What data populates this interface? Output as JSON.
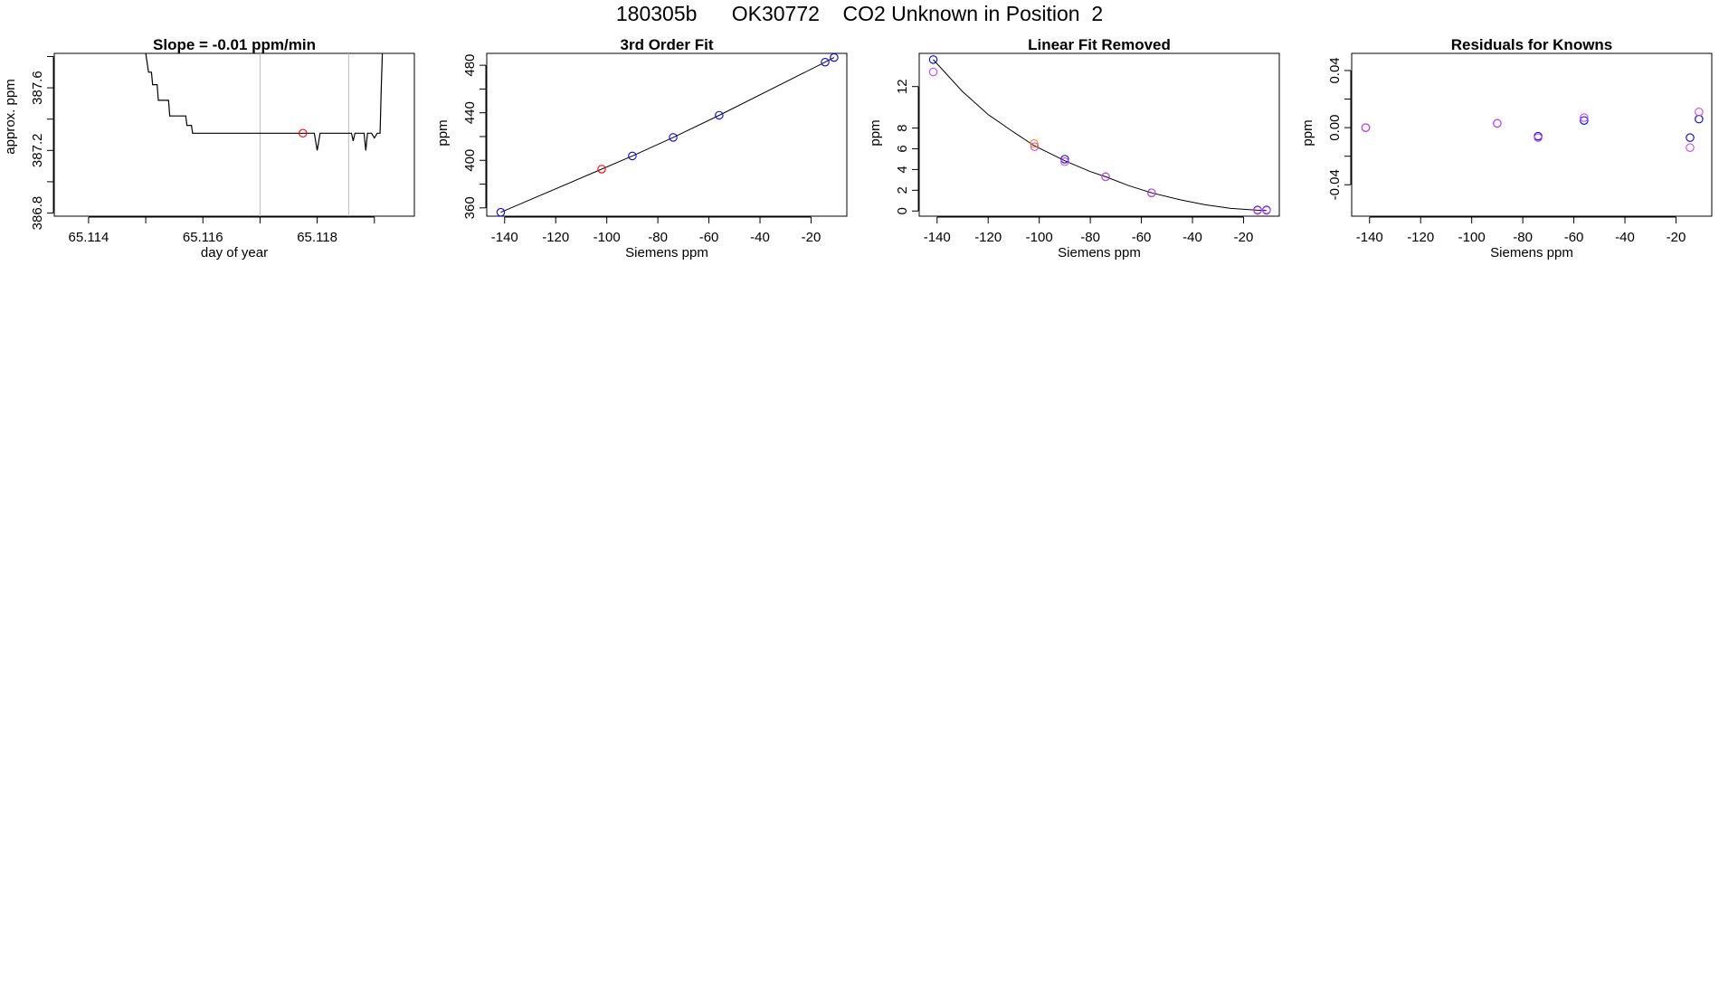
{
  "figure": {
    "title": "180305b      OK30772    CO2 Unknown in Position  2"
  },
  "chart_data": [
    {
      "type": "line",
      "title": "Slope =  -0.01  ppm/min",
      "xlabel": "day of year",
      "ylabel": "approx. ppm",
      "xlim": [
        65.1134,
        65.1197
      ],
      "ylim": [
        386.78,
        387.82
      ],
      "xticks": [
        65.114,
        65.115,
        65.116,
        65.117,
        65.118,
        65.119
      ],
      "xtick_labels": [
        "65.114",
        "",
        "65.116",
        "",
        "65.118",
        ""
      ],
      "yticks": [
        386.8,
        387.0,
        387.2,
        387.4,
        387.6,
        387.8
      ],
      "ytick_labels": [
        "386.8",
        "",
        "387.2",
        "",
        "387.6",
        ""
      ],
      "vlines": [
        65.117,
        65.11855
      ],
      "series": [
        {
          "style": "line",
          "color": "#000000",
          "x": [
            65.115,
            65.11505,
            65.1151,
            65.11512,
            65.1152,
            65.11522,
            65.1154,
            65.11542,
            65.1157,
            65.11572,
            65.1158,
            65.11582,
            65.11795,
            65.118,
            65.11805,
            65.1181,
            65.11815,
            65.1186,
            65.11863,
            65.11866,
            65.1187,
            65.11882,
            65.11885,
            65.11888,
            65.11895,
            65.119,
            65.11905,
            65.1191,
            65.11912,
            65.11914
          ],
          "y": [
            387.82,
            387.7,
            387.7,
            387.62,
            387.62,
            387.52,
            387.52,
            387.42,
            387.42,
            387.36,
            387.36,
            387.31,
            387.31,
            387.2,
            387.31,
            387.31,
            387.31,
            387.31,
            387.26,
            387.31,
            387.31,
            387.31,
            387.2,
            387.31,
            387.31,
            387.28,
            387.31,
            387.31,
            387.6,
            387.82
          ]
        },
        {
          "style": "points",
          "color": "#ff0000",
          "x": [
            65.11775
          ],
          "y": [
            387.31
          ]
        }
      ]
    },
    {
      "type": "scatter",
      "title": "3rd Order Fit",
      "xlabel": "Siemens ppm",
      "ylabel": "ppm",
      "xlim": [
        -147,
        -6
      ],
      "ylim": [
        353,
        490
      ],
      "xticks": [
        -140,
        -120,
        -100,
        -80,
        -60,
        -40,
        -20
      ],
      "xtick_labels": [
        "-140",
        "-120",
        "-100",
        "-80",
        "-60",
        "-40",
        "-20"
      ],
      "yticks": [
        360,
        380,
        400,
        420,
        440,
        460,
        480
      ],
      "ytick_labels": [
        "360",
        "",
        "400",
        "",
        "440",
        "",
        "480"
      ],
      "curve": {
        "x": [
          -141.5,
          -102.0,
          -90.0,
          -74.0,
          -56.0,
          -14.5,
          -11.0
        ],
        "y": [
          356.3,
          392.6,
          403.7,
          419.3,
          437.9,
          482.6,
          486.5
        ]
      },
      "series": [
        {
          "color": "#0000ff",
          "x": [
            -141.5,
            -90.0,
            -74.0,
            -56.0,
            -14.5,
            -11.0
          ],
          "y": [
            356.3,
            403.7,
            419.3,
            437.9,
            482.6,
            486.5
          ]
        },
        {
          "color": "#ff0000",
          "x": [
            -102.0
          ],
          "y": [
            392.6
          ]
        }
      ]
    },
    {
      "type": "scatter",
      "title": "Linear Fit Removed",
      "xlabel": "Siemens ppm",
      "ylabel": "ppm",
      "xlim": [
        -147,
        -6
      ],
      "ylim": [
        -0.5,
        15.2
      ],
      "xticks": [
        -140,
        -120,
        -100,
        -80,
        -60,
        -40,
        -20
      ],
      "xtick_labels": [
        "-140",
        "-120",
        "-100",
        "-80",
        "-60",
        "-40",
        "-20"
      ],
      "yticks": [
        0,
        2,
        4,
        6,
        8,
        12
      ],
      "ytick_labels": [
        "0",
        "2",
        "4",
        "6",
        "8",
        "12"
      ],
      "curve": {
        "x": [
          -141.5,
          -130,
          -120,
          -110,
          -102,
          -90,
          -80,
          -74,
          -65,
          -56,
          -45,
          -35,
          -25,
          -14.5,
          -11
        ],
        "y": [
          14.6,
          11.5,
          9.3,
          7.6,
          6.3,
          4.85,
          3.8,
          3.3,
          2.45,
          1.75,
          1.1,
          0.6,
          0.25,
          0.08,
          0.05
        ]
      },
      "series": [
        {
          "color": "#0000ff",
          "x": [
            -141.5,
            -90.0,
            -74.0,
            -56.0,
            -14.5,
            -11.0
          ],
          "y": [
            14.6,
            5.0,
            3.3,
            1.75,
            0.1,
            0.1
          ]
        },
        {
          "color": "#cc44ee",
          "x": [
            -141.5,
            -90.0,
            -74.0,
            -56.0,
            -14.5,
            -11.0,
            -101.8
          ],
          "y": [
            13.4,
            4.75,
            3.3,
            1.75,
            0.05,
            0.05,
            6.2
          ]
        },
        {
          "color": "#ff8800",
          "x": [
            -102.0
          ],
          "y": [
            6.5
          ]
        }
      ]
    },
    {
      "type": "scatter",
      "title": "Residuals for Knowns",
      "xlabel": "Siemens ppm",
      "ylabel": "ppm",
      "xlim": [
        -147,
        -6
      ],
      "ylim": [
        -0.062,
        0.052
      ],
      "xticks": [
        -140,
        -120,
        -100,
        -80,
        -60,
        -40,
        -20
      ],
      "xtick_labels": [
        "-140",
        "-120",
        "-100",
        "-80",
        "-60",
        "-40",
        "-20"
      ],
      "yticks": [
        -0.04,
        -0.02,
        0.0,
        0.02,
        0.04
      ],
      "ytick_labels": [
        "-0.04",
        "",
        "0.00",
        "",
        "0.04"
      ],
      "series": [
        {
          "color": "#0000ff",
          "x": [
            -141.5,
            -90.0,
            -74.0,
            -56.0,
            -14.5,
            -11.0
          ],
          "y": [
            0.0,
            0.003,
            -0.006,
            0.005,
            -0.007,
            0.006
          ]
        },
        {
          "color": "#cc44ee",
          "x": [
            -141.5,
            -90.0,
            -74.0,
            -56.0,
            -14.5,
            -11.0
          ],
          "y": [
            0.0,
            0.003,
            -0.007,
            0.007,
            -0.014,
            0.011
          ]
        }
      ]
    }
  ]
}
